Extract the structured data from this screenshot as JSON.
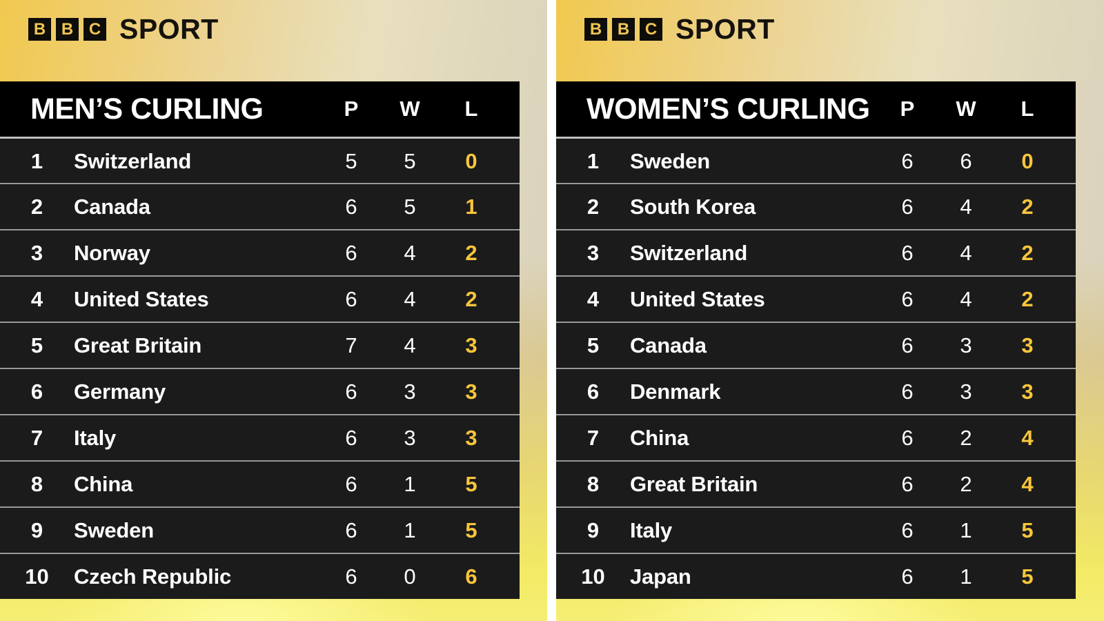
{
  "brand": {
    "blocks": [
      "B",
      "B",
      "C"
    ],
    "wordmark": "SPORT"
  },
  "colors": {
    "accent_yellow": "#f8c53c",
    "logo_letter_gold": "#eec455",
    "header_bg": "#000000",
    "row_bg": "#1b1b1b",
    "background_gold": "#f1c94f",
    "background_cream": "#e8e0bd",
    "background_bottom_yellow": "#f5ee74",
    "gutter_white": "#ffffff"
  },
  "chart_data": [
    {
      "type": "table",
      "title": "MEN’S CURLING",
      "columns": [
        "P",
        "W",
        "L"
      ],
      "rows": [
        {
          "pos": "1",
          "team": "Switzerland",
          "p": "5",
          "w": "5",
          "l": "0"
        },
        {
          "pos": "2",
          "team": "Canada",
          "p": "6",
          "w": "5",
          "l": "1"
        },
        {
          "pos": "3",
          "team": "Norway",
          "p": "6",
          "w": "4",
          "l": "2"
        },
        {
          "pos": "4",
          "team": "United States",
          "p": "6",
          "w": "4",
          "l": "2"
        },
        {
          "pos": "5",
          "team": "Great Britain",
          "p": "7",
          "w": "4",
          "l": "3"
        },
        {
          "pos": "6",
          "team": "Germany",
          "p": "6",
          "w": "3",
          "l": "3"
        },
        {
          "pos": "7",
          "team": "Italy",
          "p": "6",
          "w": "3",
          "l": "3"
        },
        {
          "pos": "8",
          "team": "China",
          "p": "6",
          "w": "1",
          "l": "5"
        },
        {
          "pos": "9",
          "team": "Sweden",
          "p": "6",
          "w": "1",
          "l": "5"
        },
        {
          "pos": "10",
          "team": "Czech Republic",
          "p": "6",
          "w": "0",
          "l": "6"
        }
      ]
    },
    {
      "type": "table",
      "title": "WOMEN’S CURLING",
      "columns": [
        "P",
        "W",
        "L"
      ],
      "rows": [
        {
          "pos": "1",
          "team": "Sweden",
          "p": "6",
          "w": "6",
          "l": "0"
        },
        {
          "pos": "2",
          "team": "South Korea",
          "p": "6",
          "w": "4",
          "l": "2"
        },
        {
          "pos": "3",
          "team": "Switzerland",
          "p": "6",
          "w": "4",
          "l": "2"
        },
        {
          "pos": "4",
          "team": "United States",
          "p": "6",
          "w": "4",
          "l": "2"
        },
        {
          "pos": "5",
          "team": "Canada",
          "p": "6",
          "w": "3",
          "l": "3"
        },
        {
          "pos": "6",
          "team": "Denmark",
          "p": "6",
          "w": "3",
          "l": "3"
        },
        {
          "pos": "7",
          "team": "China",
          "p": "6",
          "w": "2",
          "l": "4"
        },
        {
          "pos": "8",
          "team": "Great Britain",
          "p": "6",
          "w": "2",
          "l": "4"
        },
        {
          "pos": "9",
          "team": "Italy",
          "p": "6",
          "w": "1",
          "l": "5"
        },
        {
          "pos": "10",
          "team": "Japan",
          "p": "6",
          "w": "1",
          "l": "5"
        }
      ]
    }
  ]
}
